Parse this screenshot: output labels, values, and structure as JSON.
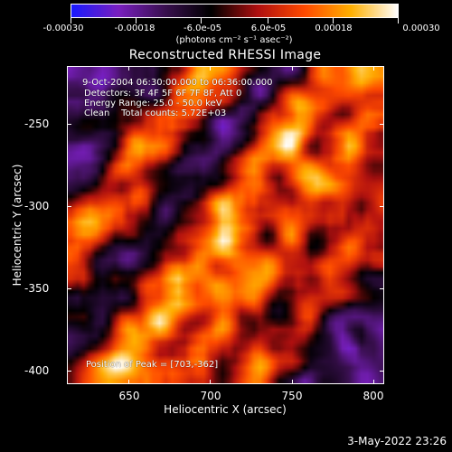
{
  "colorbar": {
    "tick_labels": [
      "-0.00030",
      "-0.00018",
      "-6.0e-05",
      "6.0e-05",
      "0.00018",
      "0.00030"
    ],
    "range": [
      -0.0003,
      0.0003
    ],
    "units_label": "(photons cm⁻² s⁻¹ asec⁻²)",
    "colors": [
      "#1a1aff",
      "#7a1fc0",
      "#3a1050",
      "#000000",
      "#b01010",
      "#ff4a00",
      "#ffb000",
      "#ffffff"
    ]
  },
  "title": "Reconstructed RHESSI Image",
  "annotations": {
    "time_range": "9-Oct-2004 06:30:00.000 to 06:36:00.000",
    "detectors": "Detectors: 3F 4F 5F 6F 7F 8F, Att 0",
    "energy": "Energy Range: 25.0 - 50.0 keV",
    "clean": "Clean    Total counts: 5.72E+03",
    "peak": "Position of Peak = [703,-362]"
  },
  "axes": {
    "x_title": "Heliocentric X (arcsec)",
    "y_title": "Heliocentric Y (arcsec)",
    "x_ticks": [
      "650",
      "700",
      "750",
      "800"
    ],
    "y_ticks": [
      "-250",
      "-300",
      "-350",
      "-400"
    ],
    "x_range": [
      613,
      805
    ],
    "y_range": [
      -410,
      -217
    ]
  },
  "footer": {
    "timestamp": "3-May-2022 23:26"
  }
}
